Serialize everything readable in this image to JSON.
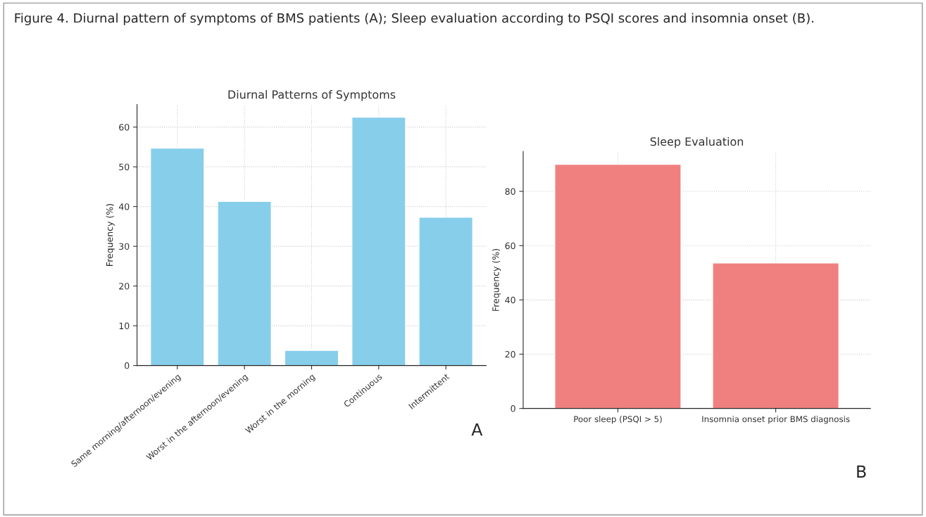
{
  "chart_data": [
    {
      "type": "bar",
      "title": "Diurnal Patterns of Symptoms",
      "ylabel": "Frequency (%)",
      "categories": [
        "Same morning/afternoon/evening",
        "Worst in the afternoon/evening",
        "Worst in the morning",
        "Continuous",
        "Intermittent"
      ],
      "values": [
        54.7,
        41.3,
        3.8,
        62.5,
        37.3
      ],
      "color": "#87ceeb",
      "ylim": [
        0,
        65.7
      ],
      "yticks": [
        0,
        10,
        20,
        30,
        40,
        50,
        60
      ],
      "grid": true,
      "annotations": [
        "Figure 4. Diurnal pattern of symptoms of BMS patients (A); Sleep evaluation according to PSQI scores and insomnia onset (B).",
        "A"
      ]
    },
    {
      "type": "bar",
      "title": "Sleep Evaluation",
      "ylabel": "Frequency (%)",
      "categories": [
        "Poor sleep (PSQI > 5)",
        "Insomnia onset prior BMS diagnosis"
      ],
      "values": [
        90,
        53.6
      ],
      "color": "#f08080",
      "ylim": [
        0,
        94.7
      ],
      "yticks": [
        0,
        20,
        40,
        60,
        80
      ],
      "grid": true,
      "annotations": [
        "B"
      ]
    }
  ]
}
